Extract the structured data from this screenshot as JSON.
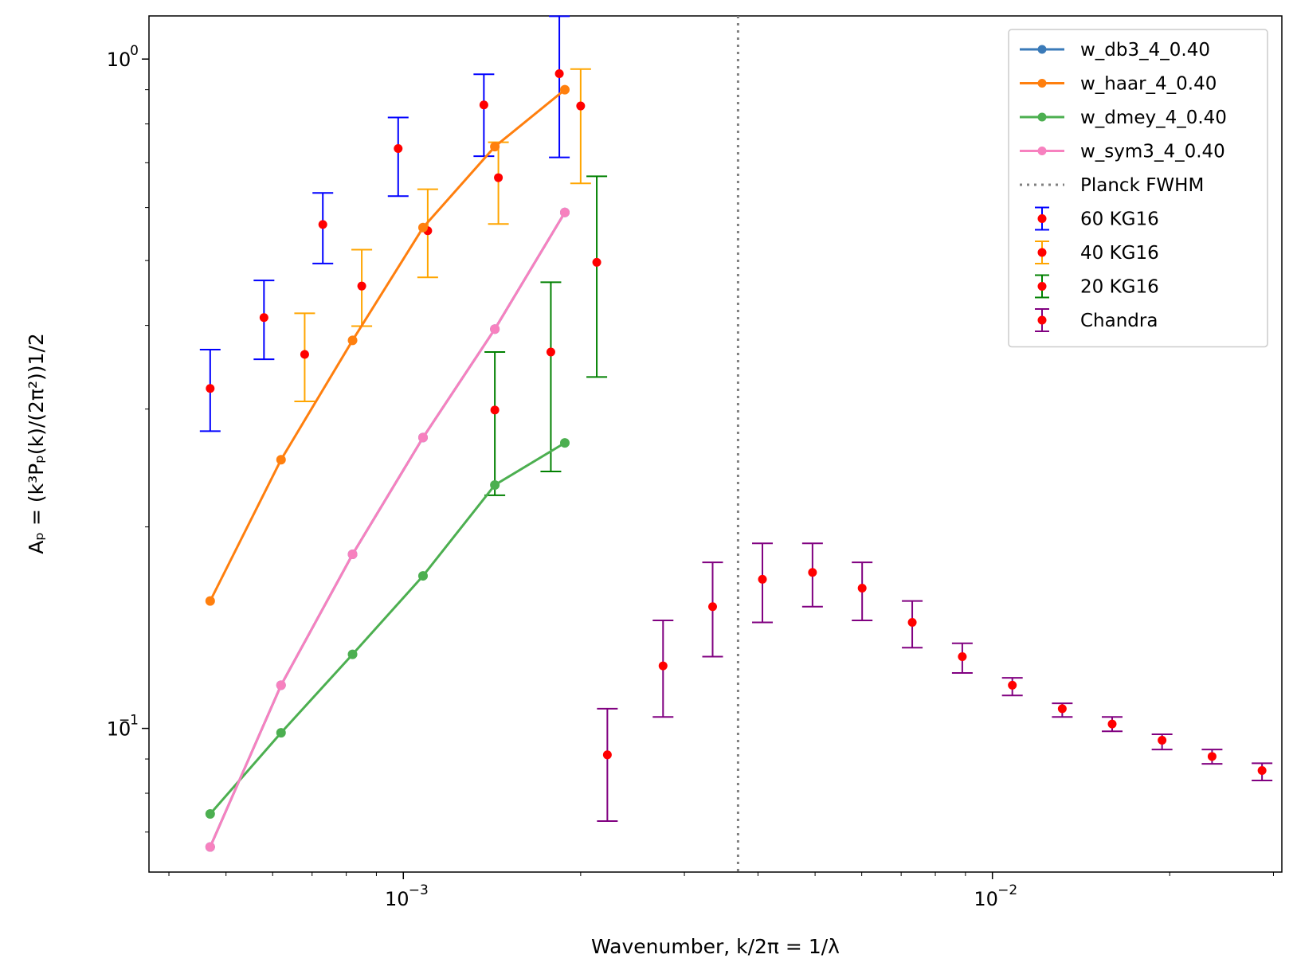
{
  "chart_data": {
    "type": "scatter",
    "xlabel": "Wavenumber, $k/2\\pi$ = $1/\\lambda$",
    "ylabel": "$A_P = (k^3P_P(k)/(2\\pi^2))^{1/2}$",
    "xscale": "log",
    "yscale": "log",
    "xlim": [
      0.00037,
      0.031
    ],
    "ylim": [
      0.061,
      1.16
    ],
    "xticks": [
      {
        "value": 0.001,
        "base": "10",
        "exp": "−3"
      },
      {
        "value": 0.01,
        "base": "10",
        "exp": "−2"
      }
    ],
    "yticks": [
      {
        "value": 0.1,
        "base": "10",
        "exp": "−1"
      },
      {
        "value": 1.0,
        "base": "10",
        "exp": "0"
      }
    ],
    "vline": {
      "x": 0.0037,
      "label": "Planck FWHM",
      "color": "#808080"
    },
    "legend": {
      "position": "top-right",
      "entries": [
        {
          "label": "w_db3_4_0.40",
          "kind": "line",
          "color": "#3a7ab8"
        },
        {
          "label": "w_haar_4_0.40",
          "kind": "line",
          "color": "#ff7f0e"
        },
        {
          "label": "w_dmey_4_0.40",
          "kind": "line",
          "color": "#4caf50"
        },
        {
          "label": "w_sym3_4_0.40",
          "kind": "line",
          "color": "#f781bf"
        },
        {
          "label": "Planck FWHM",
          "kind": "dotted",
          "color": "#808080"
        },
        {
          "label": "60 KG16",
          "kind": "errorbar",
          "color": "#0000ff"
        },
        {
          "label": "40 KG16",
          "kind": "errorbar",
          "color": "#ffa500"
        },
        {
          "label": "20 KG16",
          "kind": "errorbar",
          "color": "#008000"
        },
        {
          "label": "Chandra",
          "kind": "errorbar",
          "color": "#800080"
        }
      ]
    },
    "line_series": [
      {
        "name": "w_db3_4_0.40",
        "color": "#3a7ab8",
        "x": [
          0.00047,
          0.00062,
          0.00082,
          0.00108,
          0.00143,
          0.00188
        ],
        "y": [
          0.0665,
          0.116,
          0.182,
          0.272,
          0.395,
          0.59
        ]
      },
      {
        "name": "w_haar_4_0.40",
        "color": "#ff7f0e",
        "x": [
          0.00047,
          0.00062,
          0.00082,
          0.00108,
          0.00143,
          0.00188
        ],
        "y": [
          0.155,
          0.252,
          0.38,
          0.56,
          0.74,
          0.9
        ]
      },
      {
        "name": "w_dmey_4_0.40",
        "color": "#4caf50",
        "x": [
          0.00047,
          0.00062,
          0.00082,
          0.00108,
          0.00143,
          0.00188
        ],
        "y": [
          0.0745,
          0.0985,
          0.129,
          0.169,
          0.231,
          0.267
        ]
      },
      {
        "name": "w_sym3_4_0.40",
        "color": "#f781bf",
        "x": [
          0.00047,
          0.00062,
          0.00082,
          0.00108,
          0.00143,
          0.00188
        ],
        "y": [
          0.0665,
          0.116,
          0.182,
          0.272,
          0.395,
          0.59
        ]
      }
    ],
    "errorbar_series": [
      {
        "name": "60 KG16",
        "color": "#0000ff",
        "marker_color": "#ff0000",
        "points": [
          {
            "x": 0.00047,
            "y": 0.322,
            "lo": 0.278,
            "hi": 0.368
          },
          {
            "x": 0.00058,
            "y": 0.411,
            "lo": 0.356,
            "hi": 0.467
          },
          {
            "x": 0.00073,
            "y": 0.566,
            "lo": 0.495,
            "hi": 0.631
          },
          {
            "x": 0.00098,
            "y": 0.735,
            "lo": 0.624,
            "hi": 0.818
          },
          {
            "x": 0.00137,
            "y": 0.854,
            "lo": 0.716,
            "hi": 0.949
          },
          {
            "x": 0.00184,
            "y": 0.951,
            "lo": 0.713,
            "hi": 1.159
          }
        ]
      },
      {
        "name": "40 KG16",
        "color": "#ffa500",
        "marker_color": "#ff0000",
        "points": [
          {
            "x": 0.00068,
            "y": 0.362,
            "lo": 0.308,
            "hi": 0.417
          },
          {
            "x": 0.00085,
            "y": 0.458,
            "lo": 0.399,
            "hi": 0.519
          },
          {
            "x": 0.0011,
            "y": 0.554,
            "lo": 0.472,
            "hi": 0.639
          },
          {
            "x": 0.00145,
            "y": 0.665,
            "lo": 0.567,
            "hi": 0.751
          },
          {
            "x": 0.002,
            "y": 0.851,
            "lo": 0.652,
            "hi": 0.966
          }
        ]
      },
      {
        "name": "20 KG16",
        "color": "#008000",
        "marker_color": "#ff0000",
        "points": [
          {
            "x": 0.00143,
            "y": 0.299,
            "lo": 0.223,
            "hi": 0.365
          },
          {
            "x": 0.00178,
            "y": 0.365,
            "lo": 0.242,
            "hi": 0.464
          },
          {
            "x": 0.00213,
            "y": 0.497,
            "lo": 0.335,
            "hi": 0.668
          }
        ]
      },
      {
        "name": "Chandra",
        "color": "#800080",
        "marker_color": "#ff0000",
        "points": [
          {
            "x": 0.00222,
            "y": 0.0913,
            "lo": 0.0727,
            "hi": 0.107
          },
          {
            "x": 0.00276,
            "y": 0.124,
            "lo": 0.104,
            "hi": 0.145
          },
          {
            "x": 0.00335,
            "y": 0.152,
            "lo": 0.128,
            "hi": 0.177
          },
          {
            "x": 0.00407,
            "y": 0.167,
            "lo": 0.144,
            "hi": 0.189
          },
          {
            "x": 0.00495,
            "y": 0.171,
            "lo": 0.152,
            "hi": 0.189
          },
          {
            "x": 0.00601,
            "y": 0.162,
            "lo": 0.145,
            "hi": 0.177
          },
          {
            "x": 0.00731,
            "y": 0.144,
            "lo": 0.132,
            "hi": 0.155
          },
          {
            "x": 0.00889,
            "y": 0.128,
            "lo": 0.121,
            "hi": 0.134
          },
          {
            "x": 0.01081,
            "y": 0.116,
            "lo": 0.112,
            "hi": 0.119
          },
          {
            "x": 0.01314,
            "y": 0.107,
            "lo": 0.104,
            "hi": 0.109
          },
          {
            "x": 0.01597,
            "y": 0.1015,
            "lo": 0.099,
            "hi": 0.104
          },
          {
            "x": 0.01941,
            "y": 0.096,
            "lo": 0.093,
            "hi": 0.098
          },
          {
            "x": 0.0236,
            "y": 0.0908,
            "lo": 0.0885,
            "hi": 0.093
          },
          {
            "x": 0.02869,
            "y": 0.0865,
            "lo": 0.0836,
            "hi": 0.0887
          }
        ]
      }
    ]
  }
}
